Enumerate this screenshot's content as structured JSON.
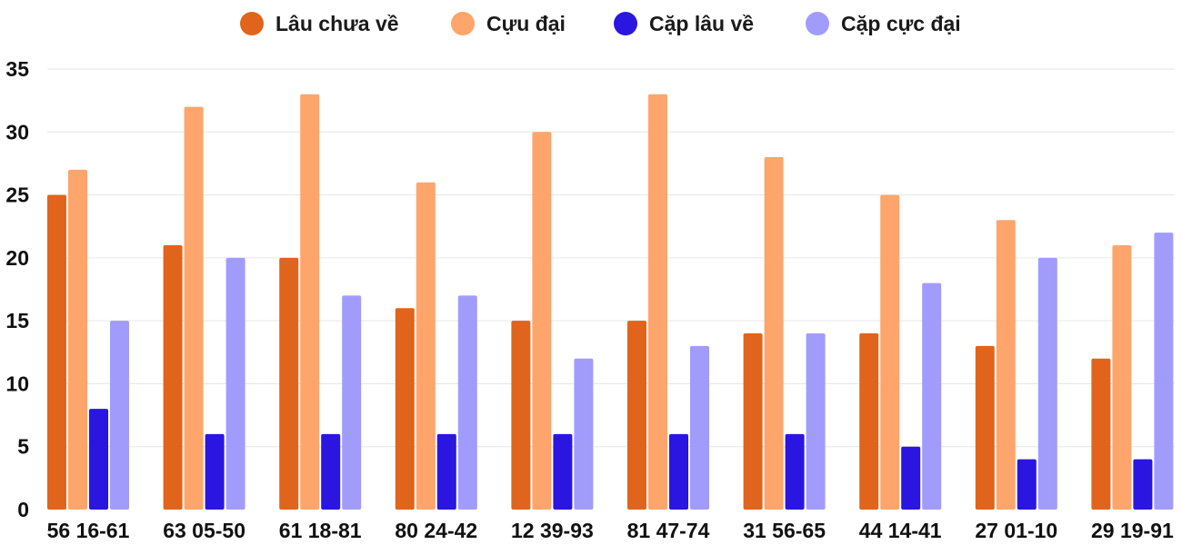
{
  "chart_data": {
    "type": "bar",
    "title": "",
    "xlabel": "",
    "ylabel": "",
    "ylim": [
      0,
      35
    ],
    "yticks": [
      0,
      5,
      10,
      15,
      20,
      25,
      30,
      35
    ],
    "grid": true,
    "legend_position": "top-center",
    "categories": [
      "56 16-61",
      "63 05-50",
      "61 18-81",
      "80 24-42",
      "12 39-93",
      "81 47-74",
      "31 56-65",
      "44 14-41",
      "27 01-10",
      "29 19-91"
    ],
    "series": [
      {
        "name": "Lâu chưa về",
        "color": "#e0641b",
        "values": [
          25,
          21,
          20,
          16,
          15,
          15,
          14,
          14,
          13,
          12
        ]
      },
      {
        "name": "Cựu đại",
        "color": "#fda56b",
        "values": [
          27,
          32,
          33,
          26,
          30,
          33,
          28,
          25,
          23,
          21
        ]
      },
      {
        "name": "Cặp lâu về",
        "color": "#2a16e0",
        "values": [
          8,
          6,
          6,
          6,
          6,
          6,
          6,
          5,
          4,
          4
        ]
      },
      {
        "name": "Cặp cực đại",
        "color": "#a19cfb",
        "values": [
          15,
          20,
          17,
          17,
          12,
          13,
          14,
          18,
          20,
          22
        ]
      }
    ]
  }
}
